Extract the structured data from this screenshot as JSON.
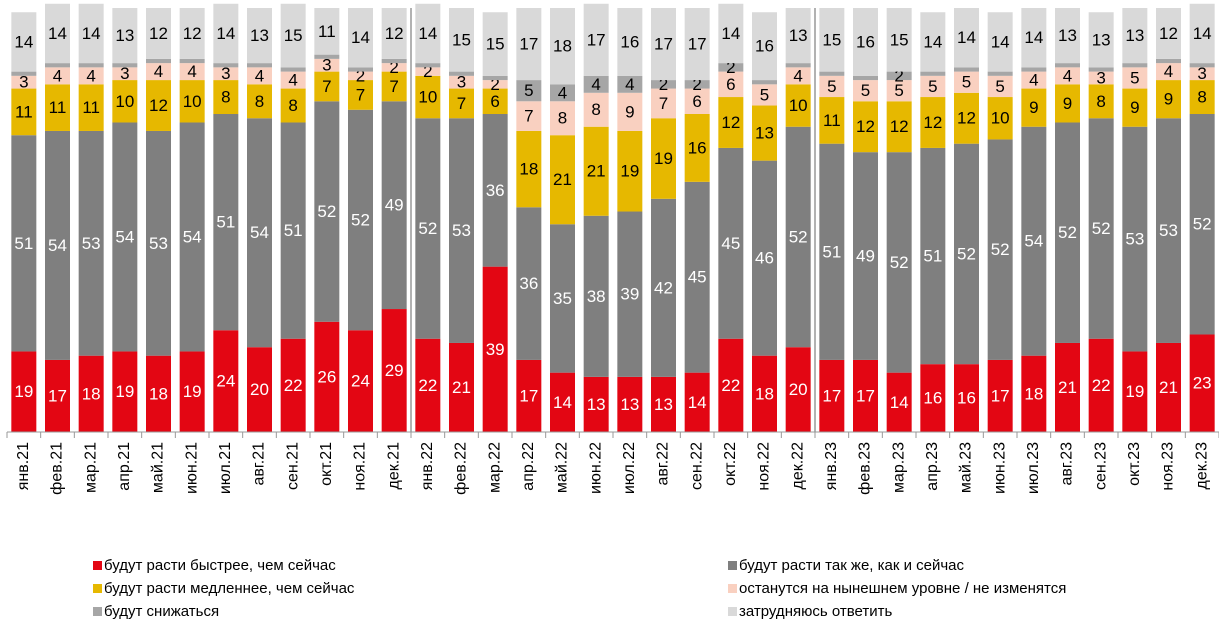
{
  "chart_data": {
    "type": "stacked_bar",
    "categories": [
      "янв.21",
      "фев.21",
      "мар.21",
      "апр.21",
      "май.21",
      "июн.21",
      "июл.21",
      "авг.21",
      "сен.21",
      "окт.21",
      "ноя.21",
      "дек.21",
      "янв.22",
      "фев.22",
      "мар.22",
      "апр.22",
      "май.22",
      "июн.22",
      "июл.22",
      "авг.22",
      "сен.22",
      "окт.22",
      "ноя.22",
      "дек.22",
      "янв.23",
      "фев.23",
      "мар.23",
      "апр.23",
      "май.23",
      "июн.23",
      "июл.23",
      "авг.23",
      "сен.23",
      "окт.23",
      "ноя.23",
      "дек.23"
    ],
    "ylim": [
      0,
      100
    ],
    "series": [
      {
        "name": "будут расти быстрее, чем сейчас",
        "color": "#e30613",
        "label_color": "#ffffff",
        "values": [
          19,
          17,
          18,
          19,
          18,
          19,
          24,
          20,
          22,
          26,
          24,
          29,
          22,
          21,
          39,
          17,
          14,
          13,
          13,
          13,
          14,
          22,
          18,
          20,
          17,
          17,
          14,
          16,
          16,
          17,
          18,
          21,
          22,
          19,
          21,
          23
        ]
      },
      {
        "name": "будут расти так же, как и сейчас",
        "color": "#7f7f7f",
        "label_color": "#ffffff",
        "values": [
          51,
          54,
          53,
          54,
          53,
          54,
          51,
          54,
          51,
          52,
          52,
          49,
          52,
          53,
          36,
          36,
          35,
          38,
          39,
          42,
          45,
          45,
          46,
          52,
          51,
          49,
          52,
          51,
          52,
          52,
          54,
          52,
          52,
          53,
          53,
          52
        ]
      },
      {
        "name": "будут расти медленнее, чем сейчас",
        "color": "#e6b800",
        "label_color": "#000000",
        "values": [
          11,
          11,
          11,
          10,
          12,
          10,
          8,
          8,
          8,
          7,
          7,
          7,
          10,
          7,
          6,
          18,
          21,
          21,
          19,
          19,
          16,
          12,
          13,
          10,
          11,
          12,
          12,
          12,
          12,
          10,
          9,
          9,
          8,
          9,
          9,
          8
        ]
      },
      {
        "name": "останутся на нынешнем уровне / не изменятся",
        "color": "#f9d0c0",
        "label_color": "#000000",
        "values": [
          3,
          4,
          4,
          3,
          4,
          4,
          3,
          4,
          4,
          3,
          2,
          2,
          2,
          3,
          2,
          7,
          8,
          8,
          9,
          7,
          6,
          6,
          5,
          4,
          5,
          5,
          5,
          5,
          5,
          5,
          4,
          4,
          3,
          5,
          4,
          3
        ]
      },
      {
        "name": "будут снижаться",
        "color": "#a6a6a6",
        "label_color": "#000000",
        "values": [
          1,
          1,
          1,
          1,
          1,
          1,
          1,
          1,
          1,
          1,
          1,
          1,
          1,
          1,
          1,
          5,
          4,
          4,
          4,
          2,
          2,
          2,
          1,
          1,
          1,
          1,
          2,
          1,
          1,
          1,
          1,
          1,
          1,
          1,
          1,
          1
        ],
        "value_labels": [
          null,
          null,
          null,
          null,
          null,
          null,
          null,
          null,
          null,
          null,
          null,
          null,
          null,
          null,
          null,
          "5",
          "4",
          "4",
          "4",
          "2",
          "2",
          "2",
          null,
          null,
          null,
          null,
          "2",
          null,
          null,
          null,
          null,
          null,
          null,
          null,
          null,
          null
        ]
      },
      {
        "name": "затрудняюсь ответить",
        "color": "#d9d9d9",
        "label_color": "#000000",
        "values": [
          14,
          14,
          14,
          13,
          12,
          12,
          14,
          13,
          15,
          11,
          14,
          12,
          14,
          15,
          15,
          17,
          18,
          17,
          16,
          17,
          17,
          14,
          16,
          13,
          15,
          16,
          15,
          14,
          14,
          14,
          14,
          13,
          13,
          13,
          12,
          14
        ]
      }
    ]
  }
}
